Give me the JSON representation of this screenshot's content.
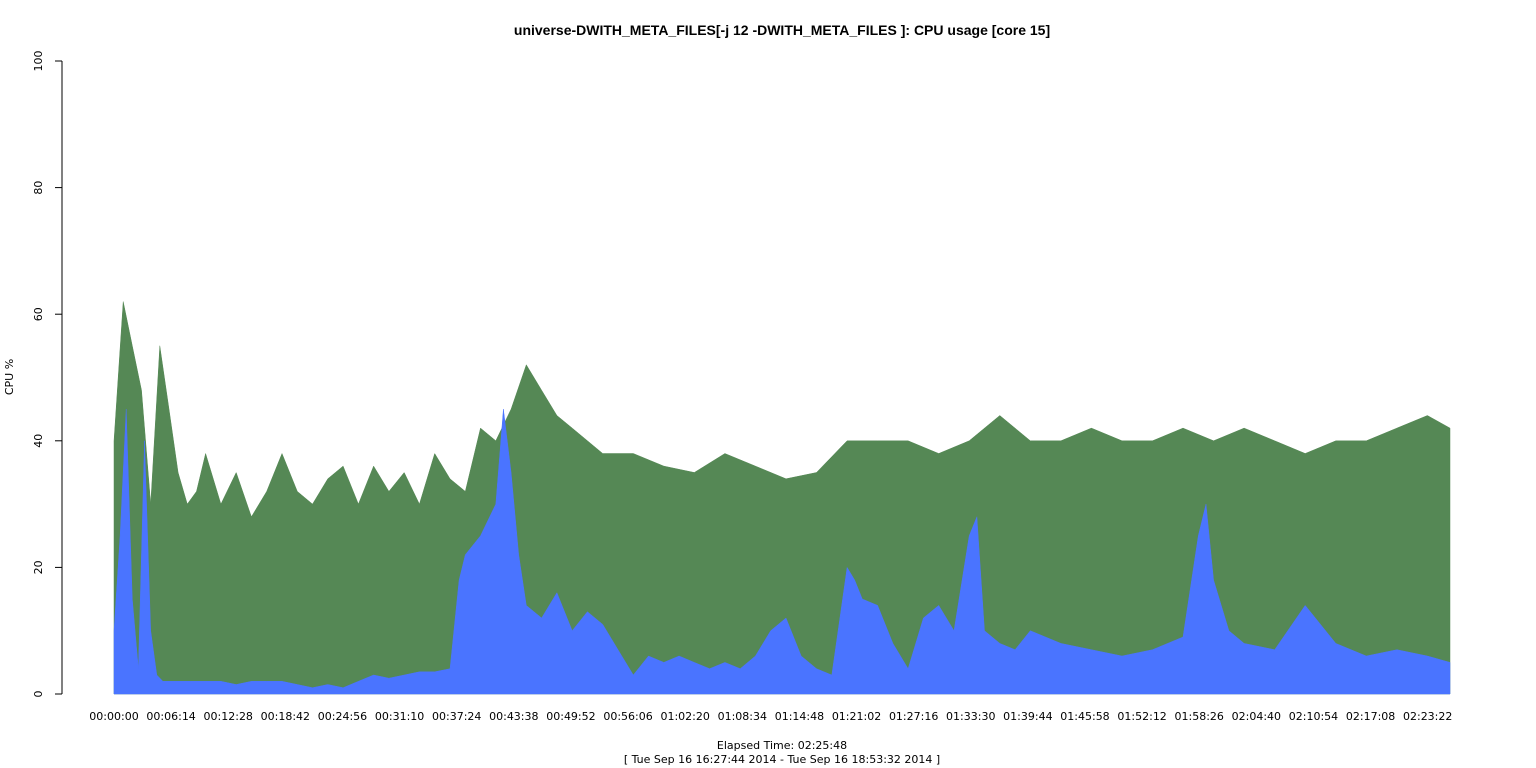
{
  "chart_data": {
    "type": "area",
    "title": "universe-DWITH_META_FILES[-j 12 -DWITH_META_FILES ]: CPU usage [core 15]",
    "xlabel": "Elapsed Time: 02:25:48",
    "xsublabel": "[ Tue Sep 16 16:27:44 2014 - Tue Sep 16 18:53:32 2014 ]",
    "ylabel": "CPU %",
    "ylim": [
      0,
      100
    ],
    "yticks": [
      0,
      20,
      40,
      60,
      80,
      100
    ],
    "xlim_seconds": [
      0,
      8748
    ],
    "xtick_labels": [
      "00:00:00",
      "00:06:14",
      "00:12:28",
      "00:18:42",
      "00:24:56",
      "00:31:10",
      "00:37:24",
      "00:43:38",
      "00:49:52",
      "00:56:06",
      "01:02:20",
      "01:08:34",
      "01:14:48",
      "01:21:02",
      "01:27:16",
      "01:33:30",
      "01:39:44",
      "01:45:58",
      "01:52:12",
      "01:58:26",
      "02:04:40",
      "02:10:54",
      "02:17:08",
      "02:23:22"
    ],
    "xtick_seconds": [
      0,
      374,
      748,
      1122,
      1496,
      1870,
      2244,
      2618,
      2992,
      3366,
      3740,
      4114,
      4488,
      4862,
      5236,
      5610,
      5984,
      6358,
      6732,
      7106,
      7480,
      7854,
      8228,
      8602
    ],
    "grid": false,
    "legend": "none",
    "series": [
      {
        "color": "#558855",
        "x": [
          0,
          60,
          120,
          180,
          240,
          300,
          360,
          420,
          480,
          540,
          600,
          700,
          800,
          900,
          1000,
          1100,
          1200,
          1300,
          1400,
          1500,
          1600,
          1700,
          1800,
          1900,
          2000,
          2100,
          2200,
          2300,
          2400,
          2500,
          2600,
          2700,
          2800,
          2900,
          3000,
          3200,
          3400,
          3600,
          3800,
          4000,
          4200,
          4400,
          4600,
          4800,
          5000,
          5200,
          5400,
          5600,
          5800,
          6000,
          6200,
          6400,
          6600,
          6800,
          7000,
          7200,
          7400,
          7600,
          7800,
          8000,
          8200,
          8400,
          8600,
          8748
        ],
        "values": [
          40,
          62,
          55,
          48,
          30,
          55,
          45,
          35,
          30,
          32,
          38,
          30,
          35,
          28,
          32,
          38,
          32,
          30,
          34,
          36,
          30,
          36,
          32,
          35,
          30,
          38,
          34,
          32,
          42,
          40,
          45,
          52,
          48,
          44,
          42,
          38,
          38,
          36,
          35,
          38,
          36,
          34,
          35,
          40,
          40,
          40,
          38,
          40,
          44,
          40,
          40,
          42,
          40,
          40,
          42,
          40,
          42,
          40,
          38,
          40,
          40,
          42,
          44,
          42
        ]
      },
      {
        "color": "#4a74ff",
        "x": [
          0,
          40,
          80,
          120,
          160,
          200,
          240,
          280,
          320,
          360,
          400,
          500,
          600,
          700,
          800,
          900,
          1000,
          1100,
          1200,
          1300,
          1400,
          1500,
          1600,
          1700,
          1800,
          1900,
          2000,
          2100,
          2200,
          2260,
          2300,
          2400,
          2500,
          2550,
          2600,
          2650,
          2700,
          2800,
          2900,
          3000,
          3100,
          3200,
          3300,
          3400,
          3500,
          3600,
          3700,
          3800,
          3900,
          4000,
          4100,
          4200,
          4300,
          4400,
          4500,
          4600,
          4700,
          4800,
          4850,
          4900,
          5000,
          5100,
          5200,
          5300,
          5400,
          5500,
          5600,
          5650,
          5700,
          5800,
          5900,
          6000,
          6200,
          6400,
          6600,
          6800,
          7000,
          7100,
          7150,
          7200,
          7300,
          7400,
          7600,
          7800,
          8000,
          8200,
          8400,
          8600,
          8748
        ],
        "values": [
          10,
          25,
          45,
          15,
          4,
          40,
          10,
          3,
          2,
          2,
          2,
          2,
          2,
          2,
          1.5,
          2,
          2,
          2,
          1.5,
          1,
          1.5,
          1,
          2,
          3,
          2.5,
          3,
          3.5,
          3.5,
          4,
          18,
          22,
          25,
          30,
          45,
          35,
          22,
          14,
          12,
          16,
          10,
          13,
          11,
          7,
          3,
          6,
          5,
          6,
          5,
          4,
          5,
          4,
          6,
          10,
          12,
          6,
          4,
          3,
          20,
          18,
          15,
          14,
          8,
          4,
          12,
          14,
          10,
          25,
          28,
          10,
          8,
          7,
          10,
          8,
          7,
          6,
          7,
          9,
          25,
          30,
          18,
          10,
          8,
          7,
          14,
          8,
          6,
          7,
          6,
          5
        ]
      }
    ]
  }
}
